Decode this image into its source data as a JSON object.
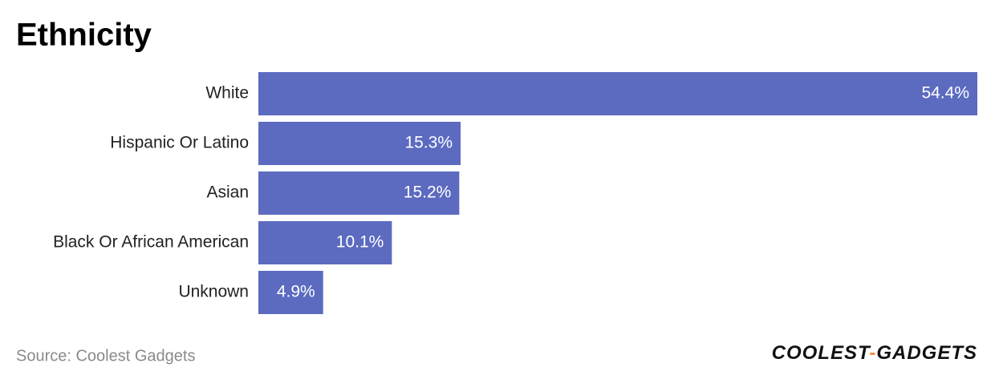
{
  "chart_data": {
    "type": "bar",
    "orientation": "horizontal",
    "title": "Ethnicity",
    "categories": [
      "White",
      "Hispanic Or Latino",
      "Asian",
      "Black Or African American",
      "Unknown"
    ],
    "values": [
      54.4,
      15.3,
      15.2,
      10.1,
      4.9
    ],
    "value_labels": [
      "54.4%",
      "15.3%",
      "15.2%",
      "10.1%",
      "4.9%"
    ],
    "color": "#5c6bc0",
    "source": "Source: Coolest Gadgets",
    "logo": [
      "COOLEST",
      "-",
      "GADGETS"
    ]
  }
}
